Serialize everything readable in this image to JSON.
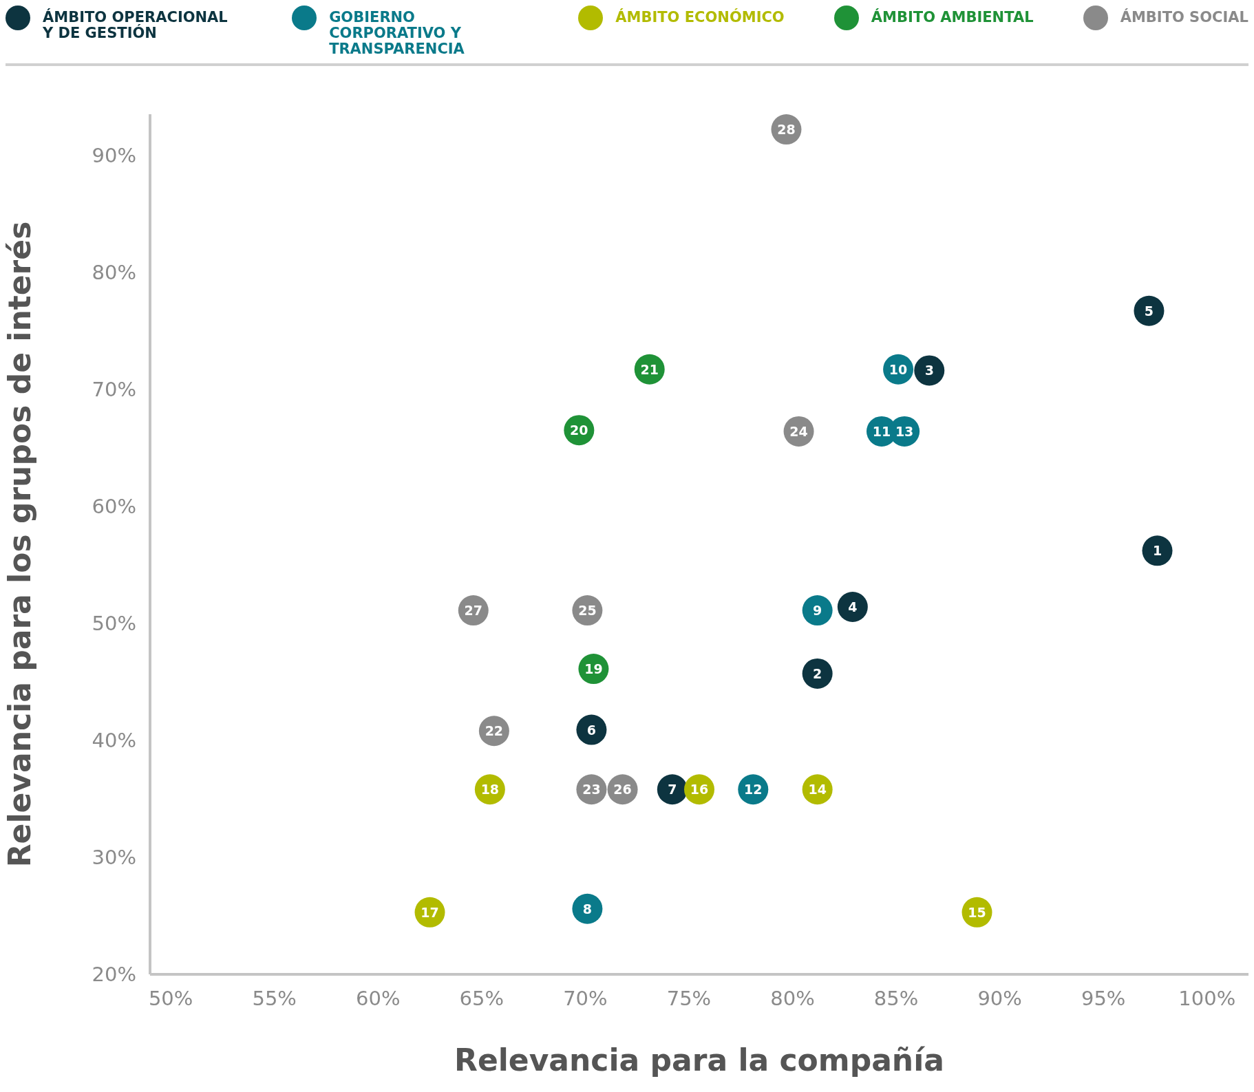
{
  "chart_data": {
    "type": "scatter",
    "xlabel": "Relevancia para la compañía",
    "ylabel": "Relevancia para los grupos de interés",
    "xlim": [
      49,
      102
    ],
    "ylim": [
      20,
      93.5
    ],
    "xticks": [
      {
        "value": 50,
        "label": "50%"
      },
      {
        "value": 55,
        "label": "55%"
      },
      {
        "value": 60,
        "label": "60%"
      },
      {
        "value": 65,
        "label": "65%"
      },
      {
        "value": 70,
        "label": "70%"
      },
      {
        "value": 75,
        "label": "75%"
      },
      {
        "value": 80,
        "label": "80%"
      },
      {
        "value": 85,
        "label": "85%"
      },
      {
        "value": 90,
        "label": "90%"
      },
      {
        "value": 95,
        "label": "95%"
      },
      {
        "value": 100,
        "label": "100%"
      }
    ],
    "yticks": [
      {
        "value": 20,
        "label": "20%"
      },
      {
        "value": 30,
        "label": "30%"
      },
      {
        "value": 40,
        "label": "40%"
      },
      {
        "value": 50,
        "label": "50%"
      },
      {
        "value": 60,
        "label": "60%"
      },
      {
        "value": 70,
        "label": "70%"
      },
      {
        "value": 80,
        "label": "80%"
      },
      {
        "value": 90,
        "label": "90%"
      }
    ],
    "legend": "top",
    "marker": "circle",
    "series": [
      {
        "name": "ÁMBITO OPERACIONAL Y DE GESTIÓN",
        "color": "#0d3440",
        "x": [
          97.6,
          81.2,
          86.6,
          82.9,
          97.2,
          70.3,
          74.2
        ],
        "values": [
          56.2,
          45.7,
          71.6,
          51.4,
          76.7,
          40.9,
          35.8
        ]
      },
      {
        "name": "GOBIERNO CORPORATIVO Y TRANSPARENCIA",
        "color": "#0a7a8a",
        "x": [
          70.1,
          81.2,
          85.1,
          84.3,
          78.1,
          85.4
        ],
        "values": [
          25.6,
          51.1,
          71.7,
          66.4,
          35.8,
          66.4
        ]
      },
      {
        "name": "ÁMBITO ECONÓMICO",
        "color": "#b2bb00",
        "x": [
          81.2,
          88.9,
          75.5,
          62.5,
          65.4
        ],
        "values": [
          35.8,
          25.3,
          35.8,
          25.3,
          35.8
        ]
      },
      {
        "name": "ÁMBITO AMBIENTAL",
        "color": "#1f9237",
        "x": [
          70.4,
          69.7,
          73.1
        ],
        "values": [
          46.1,
          66.5,
          71.7
        ]
      },
      {
        "name": "ÁMBITO SOCIAL",
        "color": "#8a8a8a",
        "x": [
          65.6,
          70.3,
          80.3,
          70.1,
          71.8,
          64.6,
          79.7
        ],
        "values": [
          40.8,
          35.8,
          66.4,
          51.1,
          35.8,
          51.1,
          92.2
        ]
      }
    ],
    "annotations": [
      {
        "text": "1",
        "x": 97.6,
        "y": 56.2
      },
      {
        "text": "2",
        "x": 81.2,
        "y": 45.7
      },
      {
        "text": "3",
        "x": 86.6,
        "y": 71.6
      },
      {
        "text": "4",
        "x": 82.9,
        "y": 51.4
      },
      {
        "text": "5",
        "x": 97.2,
        "y": 76.7
      },
      {
        "text": "6",
        "x": 70.3,
        "y": 40.9
      },
      {
        "text": "7",
        "x": 74.2,
        "y": 35.8
      },
      {
        "text": "8",
        "x": 70.1,
        "y": 25.6
      },
      {
        "text": "9",
        "x": 81.2,
        "y": 51.1
      },
      {
        "text": "10",
        "x": 85.1,
        "y": 71.7
      },
      {
        "text": "11",
        "x": 84.3,
        "y": 66.4
      },
      {
        "text": "12",
        "x": 78.1,
        "y": 35.8
      },
      {
        "text": "13",
        "x": 85.4,
        "y": 66.4
      },
      {
        "text": "14",
        "x": 81.2,
        "y": 35.8
      },
      {
        "text": "15",
        "x": 88.9,
        "y": 25.3
      },
      {
        "text": "16",
        "x": 75.5,
        "y": 35.8
      },
      {
        "text": "17",
        "x": 62.5,
        "y": 25.3
      },
      {
        "text": "18",
        "x": 65.4,
        "y": 35.8
      },
      {
        "text": "19",
        "x": 70.4,
        "y": 46.1
      },
      {
        "text": "20",
        "x": 69.7,
        "y": 66.5
      },
      {
        "text": "21",
        "x": 73.1,
        "y": 71.7
      },
      {
        "text": "22",
        "x": 65.6,
        "y": 40.8
      },
      {
        "text": "23",
        "x": 70.3,
        "y": 35.8
      },
      {
        "text": "24",
        "x": 80.3,
        "y": 66.4
      },
      {
        "text": "25",
        "x": 70.1,
        "y": 51.1
      },
      {
        "text": "26",
        "x": 71.8,
        "y": 35.8
      },
      {
        "text": "27",
        "x": 64.6,
        "y": 51.1
      },
      {
        "text": "28",
        "x": 79.7,
        "y": 92.2
      }
    ]
  }
}
